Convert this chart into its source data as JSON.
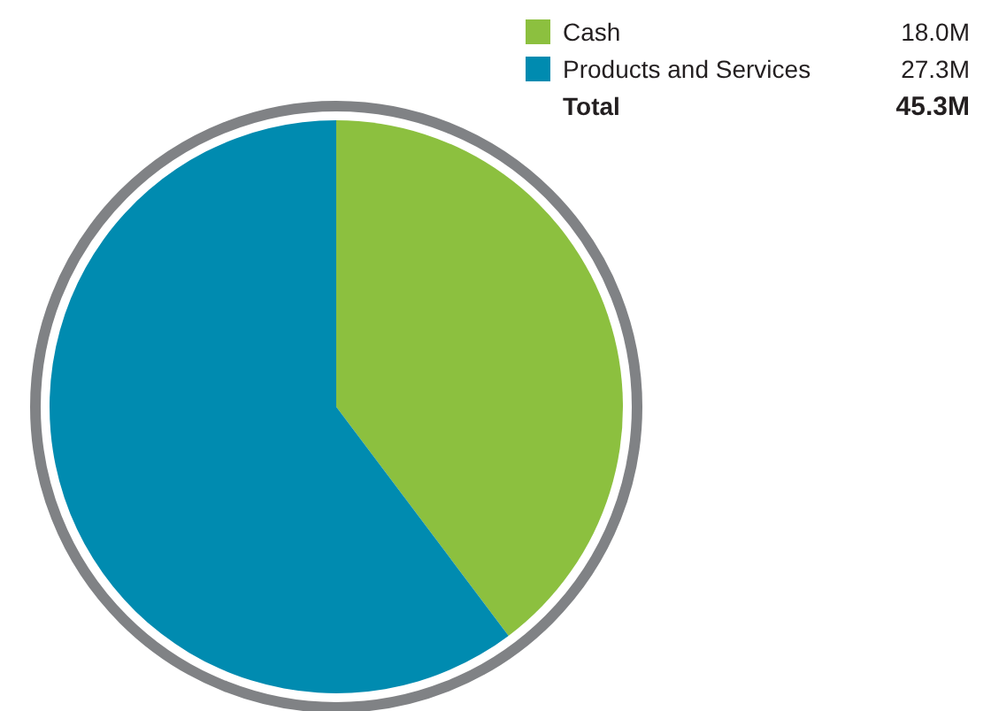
{
  "chart_data": {
    "type": "pie",
    "categories": [
      "Cash",
      "Products and Services"
    ],
    "values": [
      18.0,
      27.3
    ],
    "colors": [
      "#8cc03f",
      "#008bb0"
    ],
    "value_labels": [
      "18.0M",
      "27.3M"
    ],
    "annotations": [
      "Total",
      "45.3M"
    ],
    "legend": "top right"
  }
}
